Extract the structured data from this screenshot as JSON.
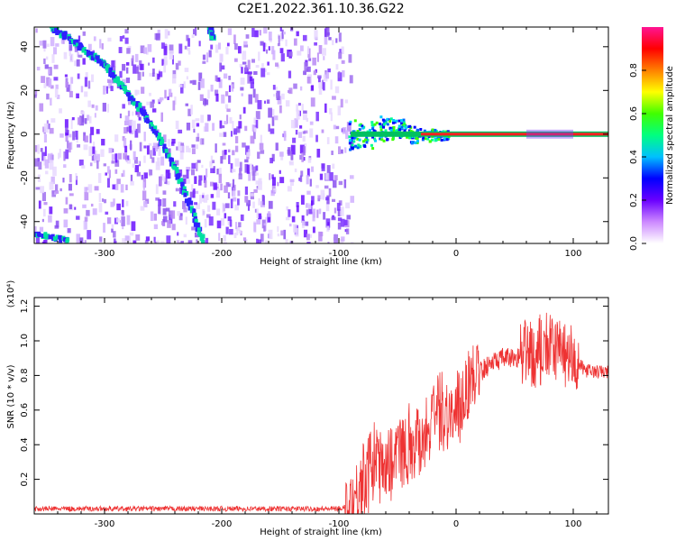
{
  "title": "C2E1.2022.361.10.36.G22",
  "chart_data": [
    {
      "type": "heatmap",
      "xlabel": "Height of straight line (km)",
      "ylabel": "Frequency (Hz)",
      "xlim": [
        -360,
        130
      ],
      "ylim": [
        -50,
        49
      ],
      "x_ticks": [
        -300,
        -200,
        -100,
        0,
        100
      ],
      "y_ticks": [
        -40,
        -20,
        0,
        20,
        40
      ],
      "colorbar": {
        "label": "Normalized spectral amplitude",
        "range": [
          0.0,
          1.0
        ],
        "ticks": [
          "0.0",
          "0.2",
          "0.4",
          "0.6",
          "0.8"
        ],
        "colors": [
          "#ffffff",
          "#cc88ff",
          "#6a00ff",
          "#0000ff",
          "#00c0ff",
          "#00ff80",
          "#40ff00",
          "#ffff00",
          "#ff8000",
          "#ff0000",
          "#ff1493"
        ]
      },
      "noise_region_x": [
        -360,
        -90
      ],
      "features": [
        {
          "name": "diagonal track 1",
          "x": [
            -345,
            -330,
            -315,
            -300,
            -285,
            -270,
            -255,
            -240,
            -225,
            -215
          ],
          "y": [
            49,
            44,
            38,
            32,
            22,
            12,
            0,
            -15,
            -35,
            -50
          ]
        },
        {
          "name": "diagonal track 2",
          "x": [
            -210,
            -207
          ],
          "y": [
            49,
            44
          ]
        },
        {
          "name": "lower-left spot",
          "x": [
            -360,
            -330
          ],
          "y": [
            -45,
            -49
          ]
        },
        {
          "name": "carrier line",
          "x": [
            -90,
            130
          ],
          "y": [
            0,
            0
          ]
        }
      ]
    },
    {
      "type": "line",
      "xlabel": "Height of straight line (km)",
      "ylabel": "SNR (10 * v/v)",
      "y_multiplier": "(x10⁴)",
      "xlim": [
        -360,
        130
      ],
      "ylim": [
        0,
        1.25
      ],
      "x_ticks": [
        -300,
        -200,
        -100,
        0,
        100
      ],
      "y_ticks": [
        "0.2",
        "0.4",
        "0.6",
        "0.8",
        "1.0",
        "1.2"
      ],
      "series": [
        {
          "color": "#ee3333",
          "x": [
            -360,
            -300,
            -250,
            -200,
            -150,
            -100,
            -90,
            -80,
            -70,
            -60,
            -50,
            -40,
            -30,
            -20,
            -10,
            0,
            10,
            20,
            30,
            40,
            50,
            60,
            70,
            80,
            90,
            100,
            110,
            120,
            130
          ],
          "y": [
            0.03,
            0.03,
            0.03,
            0.03,
            0.03,
            0.03,
            0.05,
            0.2,
            0.3,
            0.3,
            0.35,
            0.4,
            0.45,
            0.55,
            0.6,
            0.55,
            0.75,
            0.82,
            0.87,
            0.9,
            0.9,
            0.92,
            0.93,
            0.95,
            0.95,
            0.9,
            0.83,
            0.82,
            0.82
          ]
        }
      ]
    }
  ]
}
